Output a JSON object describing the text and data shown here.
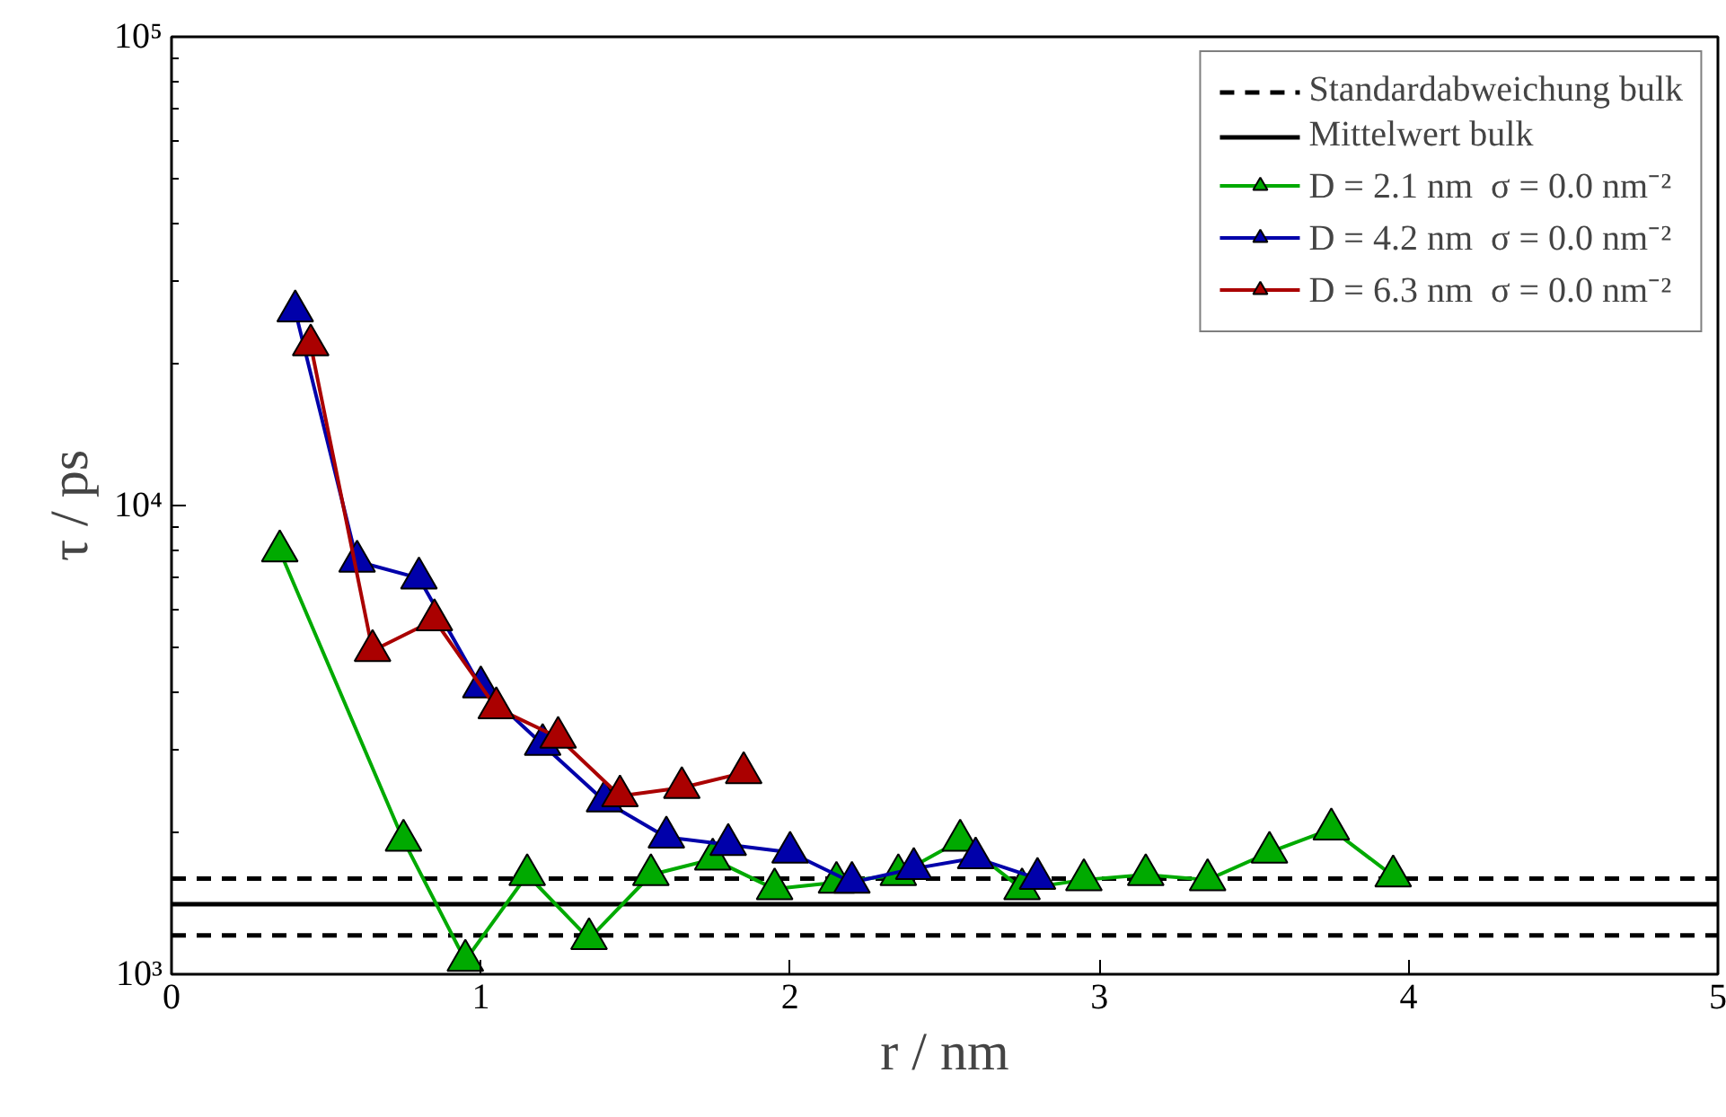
{
  "chart_data": {
    "type": "line",
    "xlabel": "r / nm",
    "ylabel": "τ / ps",
    "xlim": [
      0,
      5
    ],
    "xticks": [
      0,
      1,
      2,
      3,
      4,
      5
    ],
    "ylim": [
      1000,
      100000
    ],
    "yticks": [
      {
        "value": 1000,
        "label": "10³"
      },
      {
        "value": 10000,
        "label": "10⁴"
      },
      {
        "value": 100000,
        "label": "10⁵"
      }
    ],
    "log": "y",
    "grid": false,
    "legend": "top right",
    "marker": "triangle",
    "line_style": "solid",
    "ref_lines": [
      {
        "axis": "y",
        "value": 1600,
        "label": "Standardabweichung bulk",
        "color": "#000000",
        "line_style": "dashed"
      },
      {
        "axis": "y",
        "value": 1210,
        "color": "#000000",
        "line_style": "dashed"
      },
      {
        "axis": "y",
        "value": 1410,
        "label": "Mittelwert bulk",
        "color": "#000000",
        "line_style": "solid"
      }
    ],
    "series": [
      {
        "name": "D = 2.1 nm  σ = 0.0 nm⁻²",
        "color": "#00aa00",
        "x": [
          0.35,
          0.75,
          0.95,
          1.15,
          1.35,
          1.55,
          1.75,
          1.95,
          2.15,
          2.35,
          2.55,
          2.75,
          2.95,
          3.15,
          3.35,
          3.55,
          3.75,
          3.95
        ],
        "values": [
          8000,
          1930,
          1070,
          1630,
          1190,
          1630,
          1760,
          1520,
          1570,
          1630,
          1930,
          1520,
          1590,
          1630,
          1590,
          1820,
          2040,
          1620
        ]
      },
      {
        "name": "D = 4.2 nm  σ = 0.0 nm⁻²",
        "color": "#0000aa",
        "x": [
          0.4,
          0.6,
          0.8,
          1.0,
          1.2,
          1.4,
          1.6,
          1.8,
          2.0,
          2.2,
          2.4,
          2.6,
          2.8
        ],
        "values": [
          26000,
          7600,
          7000,
          4100,
          3090,
          2340,
          1960,
          1890,
          1820,
          1570,
          1680,
          1770,
          1600
        ]
      },
      {
        "name": "D = 6.3 nm  σ = 0.0 nm⁻²",
        "color": "#aa0000",
        "x": [
          0.45,
          0.65,
          0.85,
          1.05,
          1.25,
          1.45,
          1.65,
          1.85
        ],
        "values": [
          22000,
          4900,
          5700,
          3700,
          3200,
          2400,
          2500,
          2690
        ]
      }
    ]
  }
}
